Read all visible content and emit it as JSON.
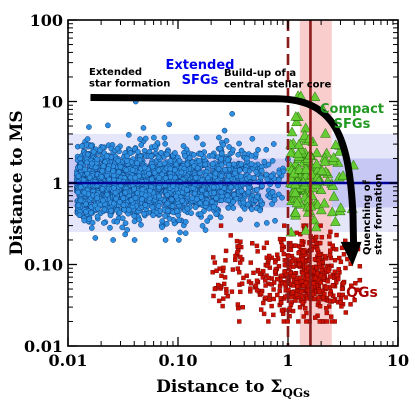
{
  "chart_data": {
    "type": "scatter",
    "xlabel": "Distance to Σ",
    "xlabel_sub": "QGs",
    "ylabel": "Distance to MS",
    "x_scale": "log",
    "y_scale": "log",
    "xlim": [
      0.01,
      10
    ],
    "ylim": [
      0.01,
      100
    ],
    "x_ticks": [
      {
        "value": 0.01,
        "label": "0.01"
      },
      {
        "value": 0.1,
        "label": "0.10"
      },
      {
        "value": 1,
        "label": "1"
      },
      {
        "value": 10,
        "label": "10"
      }
    ],
    "y_ticks": [
      {
        "value": 0.01,
        "label": "0.01"
      },
      {
        "value": 0.1,
        "label": "0.10"
      },
      {
        "value": 1,
        "label": "1"
      },
      {
        "value": 10,
        "label": "10"
      },
      {
        "value": 100,
        "label": "100"
      }
    ],
    "grid": false,
    "colors": {
      "extended": "#2e8fe0",
      "compact": "#66cc33",
      "quiescent": "#cc1100",
      "ms_line": "#000099",
      "band_inner": "#c8c8f4",
      "band_outer": "#e6e6fa",
      "vband": "#f9c4c4",
      "vline": "#8b1a1a",
      "arrow": "#000000"
    },
    "main_sequence": {
      "y": 1,
      "band_inner": [
        0.5,
        2
      ],
      "band_outer": [
        0.25,
        4
      ]
    },
    "vertical_lines": [
      {
        "x": 1,
        "style": "dashed"
      },
      {
        "x": 1.6,
        "style": "solid"
      }
    ],
    "vertical_band": [
      1.28,
      2.5
    ],
    "series": [
      {
        "name": "Extended SFGs",
        "marker": "circle",
        "color": "#2e8fe0",
        "x_range": [
          0.012,
          1.0
        ],
        "y_range": [
          0.2,
          10
        ],
        "count": 2400
      },
      {
        "name": "Compact SFGs",
        "marker": "triangle",
        "color": "#66cc33",
        "x_range": [
          1.0,
          4.0
        ],
        "y_range": [
          0.25,
          12
        ],
        "count": 150
      },
      {
        "name": "QGs",
        "marker": "square",
        "color": "#cc1100",
        "x_range": [
          0.18,
          4.5
        ],
        "y_range": [
          0.02,
          0.3
        ],
        "count": 550
      }
    ],
    "annotations": [
      {
        "id": "ext-sf",
        "text": [
          "Extended",
          "star formation"
        ],
        "color": "#000000"
      },
      {
        "id": "ext-sfgs",
        "text": [
          "Extended",
          "SFGs"
        ],
        "color": "#0000ee"
      },
      {
        "id": "buildup",
        "text": [
          "Build-up of a",
          "central stellar core"
        ],
        "color": "#000000"
      },
      {
        "id": "compact-sfgs",
        "text": [
          "Compact",
          "SFGs"
        ],
        "color": "#229922"
      },
      {
        "id": "quenching",
        "text": [
          "Quenching of",
          "star formation"
        ],
        "color": "#000000"
      },
      {
        "id": "qgs",
        "text": [
          "QGs"
        ],
        "color": "#aa0000"
      }
    ]
  }
}
